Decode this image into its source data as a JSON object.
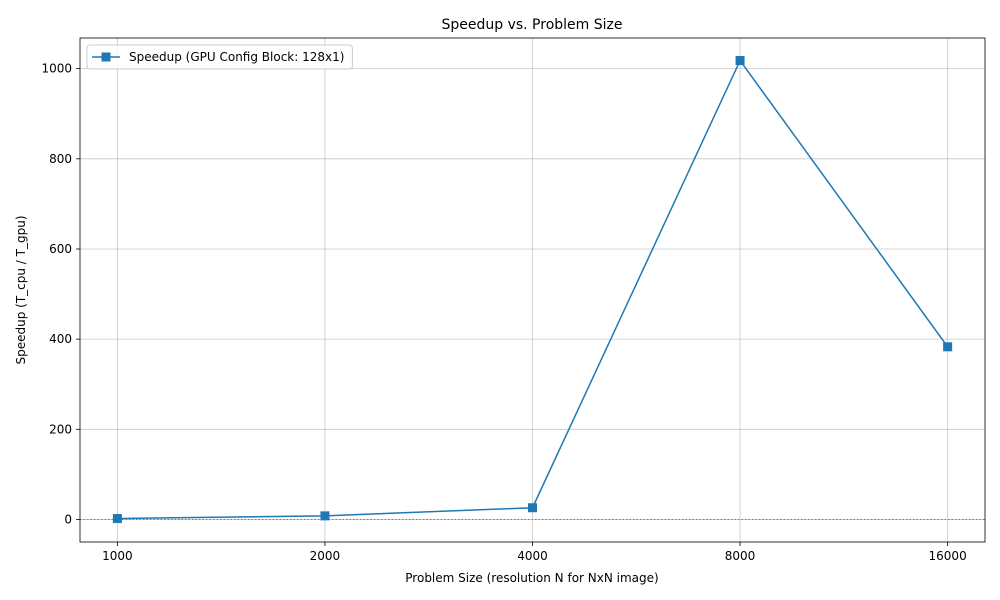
{
  "chart_data": {
    "type": "line",
    "title": "Speedup vs. Problem Size",
    "xlabel": "Problem Size (resolution N for NxN image)",
    "ylabel": "Speedup (T_cpu / T_gpu)",
    "x_scale": "log2",
    "categories": [
      "1000",
      "2000",
      "4000",
      "8000",
      "16000"
    ],
    "x": [
      1000,
      2000,
      4000,
      8000,
      16000
    ],
    "series": [
      {
        "name": "Speedup (GPU Config Block: 128x1)",
        "values": [
          2,
          8,
          26,
          1018,
          383
        ],
        "color": "#1f77b4",
        "marker": "square"
      }
    ],
    "ylim": [
      -50,
      1068
    ],
    "yticks": [
      0,
      200,
      400,
      600,
      800,
      1000
    ],
    "reference_line": {
      "y": 0,
      "style": "dotted",
      "color": "#808080"
    },
    "grid": true,
    "legend": "top-left"
  }
}
